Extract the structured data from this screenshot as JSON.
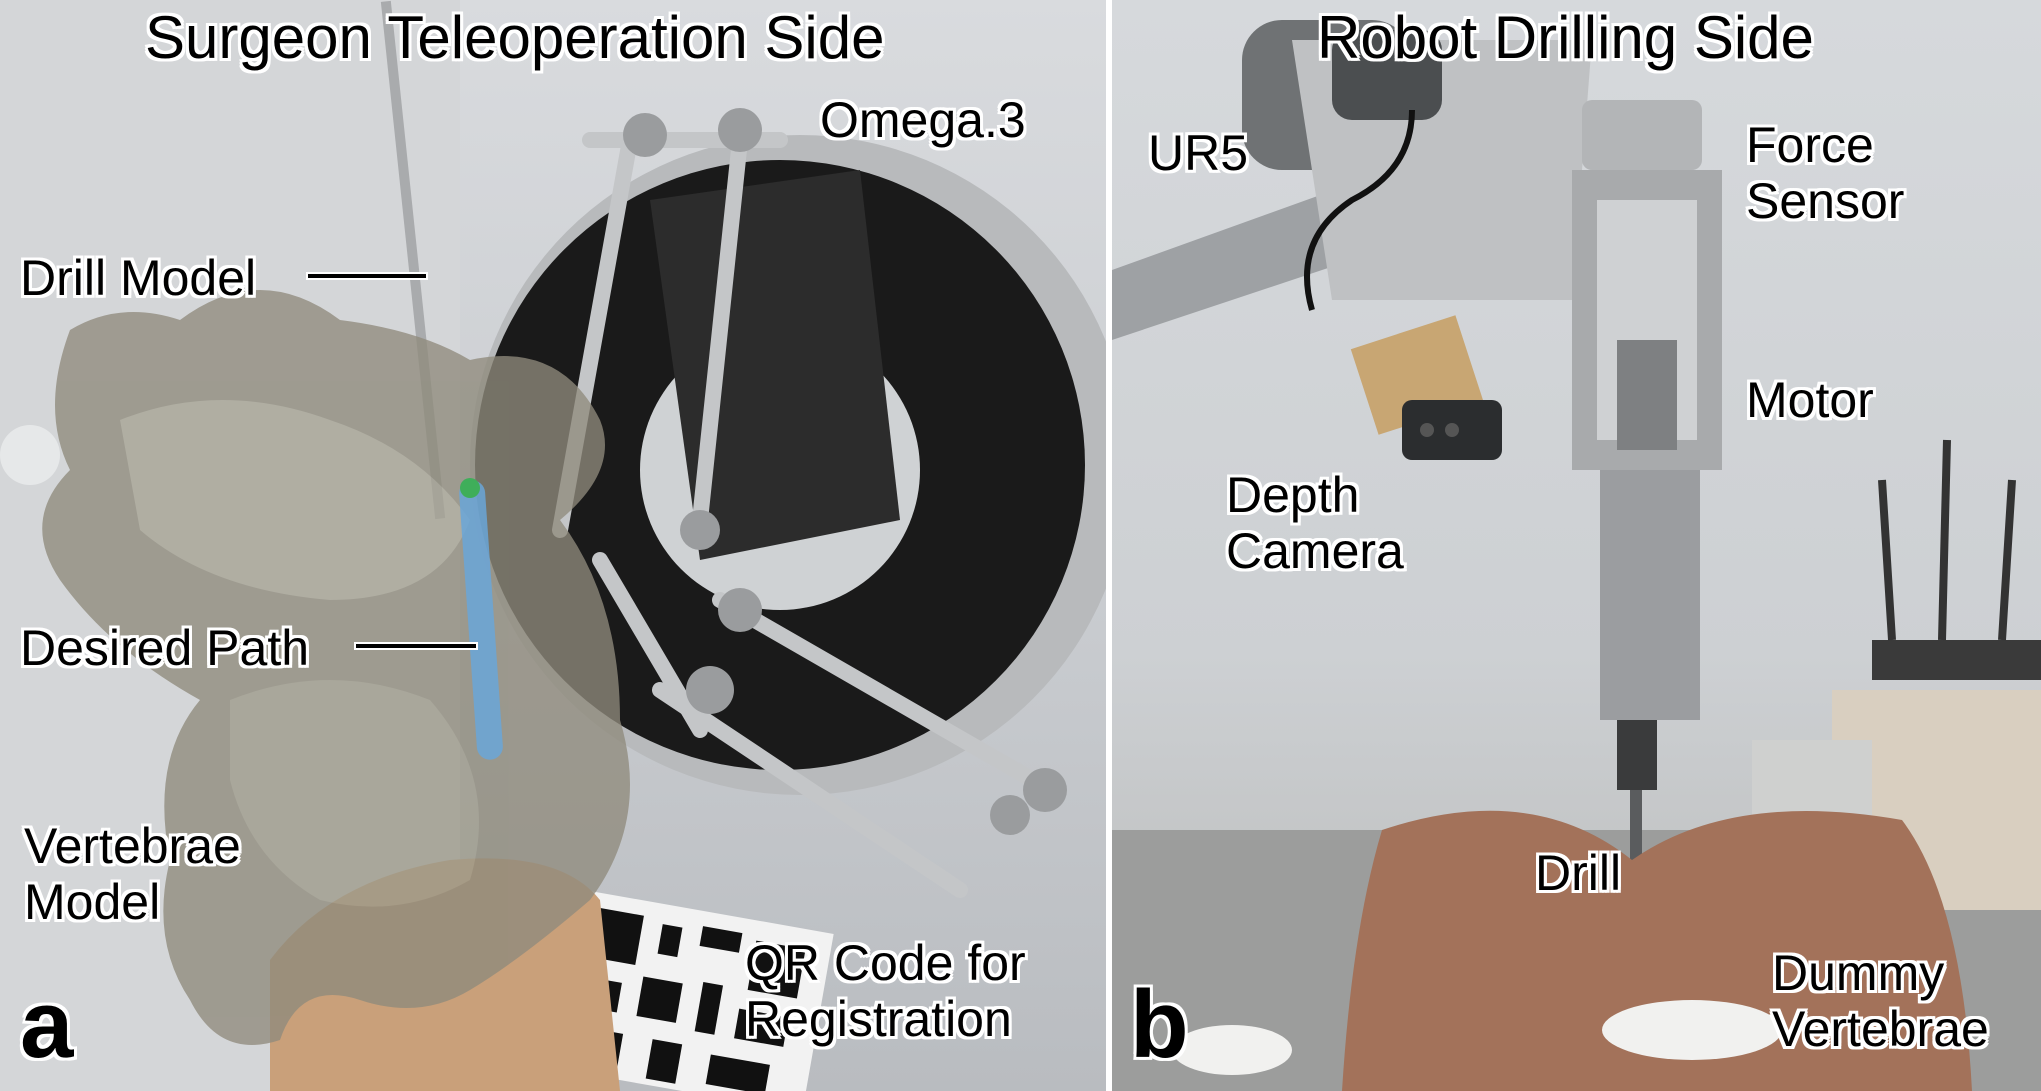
{
  "panel_a": {
    "title": "Surgeon Teleoperation Side",
    "letter": "a",
    "labels": {
      "omega": "Omega.3",
      "drill_model": "Drill Model",
      "desired_path": "Desired Path",
      "vertebrae_model_1": "Vertebrae",
      "vertebrae_model_2": "Model",
      "qr_1": "QR Code for",
      "qr_2": "Registration"
    }
  },
  "panel_b": {
    "title": "Robot Drilling Side",
    "letter": "b",
    "labels": {
      "ur5": "UR5",
      "force_1": "Force",
      "force_2": "Sensor",
      "motor": "Motor",
      "depth_1": "Depth",
      "depth_2": "Camera",
      "drill": "Drill",
      "dummy_1": "Dummy",
      "dummy_2": "Vertebrae"
    }
  }
}
